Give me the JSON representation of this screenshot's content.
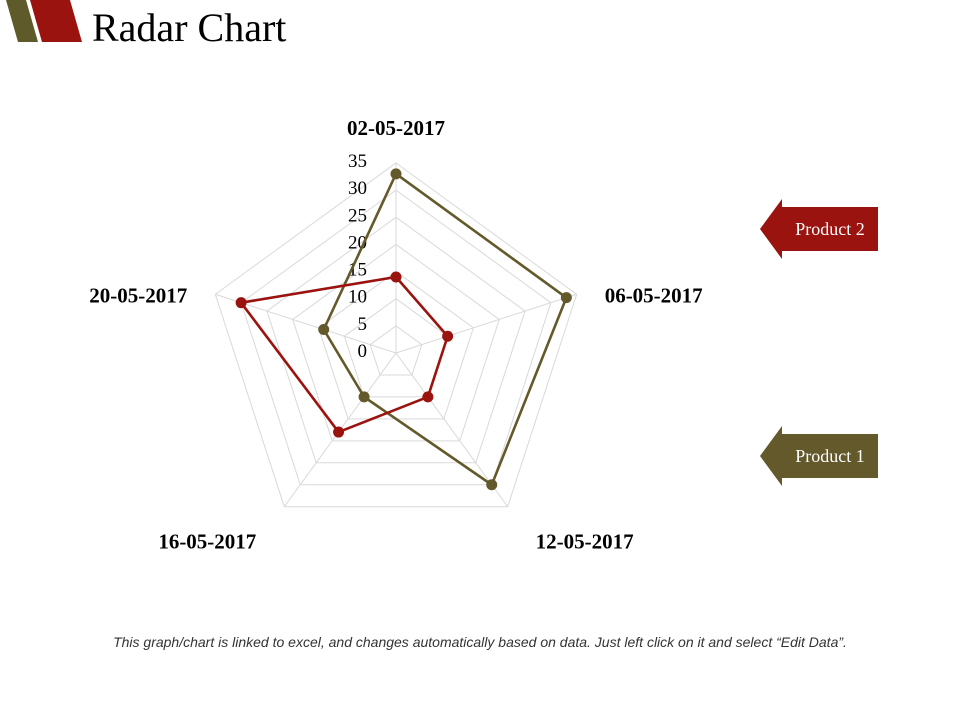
{
  "slide": {
    "title": "Radar Chart",
    "footnote": "This graph/chart is linked to excel, and changes automatically based on data. Just left click on it and select “Edit Data”."
  },
  "colors": {
    "product1": "#63592a",
    "product2": "#9b130f",
    "grid": "#d9d9d9",
    "brand_dark": "#5e5a2a",
    "brand_red": "#9b130f"
  },
  "legend": {
    "product2_label": "Product 2",
    "product1_label": "Product 1"
  },
  "chart_data": {
    "type": "radar",
    "categories": [
      "02-05-2017",
      "06-05-2017",
      "12-05-2017",
      "16-05-2017",
      "20-05-2017"
    ],
    "ticks": [
      "0",
      "5",
      "10",
      "15",
      "20",
      "25",
      "30",
      "35"
    ],
    "rlim": [
      0,
      35
    ],
    "grid": true,
    "legend_position": "right",
    "series": [
      {
        "name": "Product 1",
        "color_key": "product1",
        "values": [
          33,
          33,
          30,
          10,
          14
        ]
      },
      {
        "name": "Product 2",
        "color_key": "product2",
        "values": [
          14,
          10,
          10,
          18,
          30
        ]
      }
    ]
  }
}
